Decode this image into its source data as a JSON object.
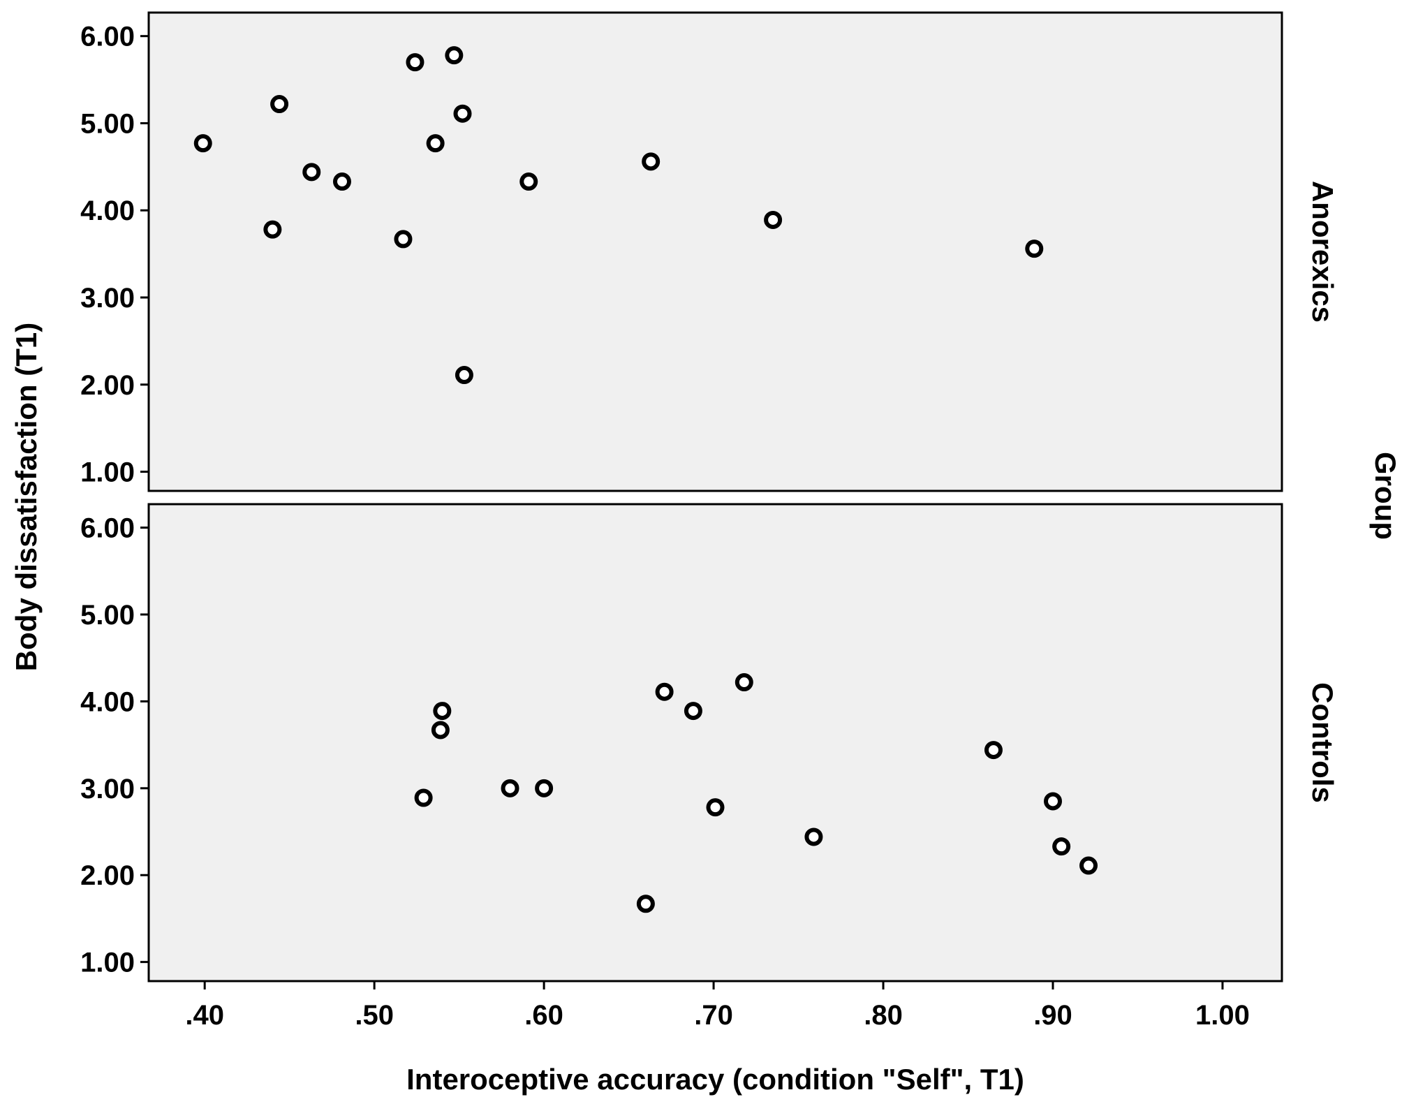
{
  "chart_data": {
    "type": "scatter",
    "xlabel": "Interoceptive accuracy (condition \"Self\", T1)",
    "ylabel": "Body dissatisfaction (T1)",
    "facet_label": "Group",
    "xlim": [
      0.367,
      1.035
    ],
    "ylim": [
      0.78,
      6.27
    ],
    "x_ticks": [
      ".40",
      ".50",
      ".60",
      ".70",
      ".80",
      ".90",
      "1.00"
    ],
    "x_tick_values": [
      0.4,
      0.5,
      0.6,
      0.7,
      0.8,
      0.9,
      1.0
    ],
    "y_ticks": [
      "1.00",
      "2.00",
      "3.00",
      "4.00",
      "5.00",
      "6.00"
    ],
    "y_tick_values": [
      1,
      2,
      3,
      4,
      5,
      6
    ],
    "grid": false,
    "panel_background": "#f0f0f0",
    "marker_color": "#000000",
    "panels": [
      {
        "name": "Anorexics",
        "points": [
          {
            "x": 0.399,
            "y": 4.77
          },
          {
            "x": 0.444,
            "y": 5.22
          },
          {
            "x": 0.44,
            "y": 3.78
          },
          {
            "x": 0.463,
            "y": 4.44
          },
          {
            "x": 0.481,
            "y": 4.33
          },
          {
            "x": 0.517,
            "y": 3.67
          },
          {
            "x": 0.524,
            "y": 5.7
          },
          {
            "x": 0.536,
            "y": 4.77
          },
          {
            "x": 0.547,
            "y": 5.78
          },
          {
            "x": 0.552,
            "y": 5.11
          },
          {
            "x": 0.553,
            "y": 2.11
          },
          {
            "x": 0.591,
            "y": 4.33
          },
          {
            "x": 0.663,
            "y": 4.56
          },
          {
            "x": 0.735,
            "y": 3.89
          },
          {
            "x": 0.889,
            "y": 3.56
          }
        ]
      },
      {
        "name": "Controls",
        "points": [
          {
            "x": 0.529,
            "y": 2.89
          },
          {
            "x": 0.54,
            "y": 3.89
          },
          {
            "x": 0.539,
            "y": 3.67
          },
          {
            "x": 0.58,
            "y": 3.0
          },
          {
            "x": 0.6,
            "y": 3.0
          },
          {
            "x": 0.66,
            "y": 1.67
          },
          {
            "x": 0.671,
            "y": 4.11
          },
          {
            "x": 0.688,
            "y": 3.89
          },
          {
            "x": 0.701,
            "y": 2.78
          },
          {
            "x": 0.718,
            "y": 4.22
          },
          {
            "x": 0.759,
            "y": 2.44
          },
          {
            "x": 0.865,
            "y": 3.44
          },
          {
            "x": 0.9,
            "y": 2.85
          },
          {
            "x": 0.905,
            "y": 2.33
          },
          {
            "x": 0.921,
            "y": 2.11
          }
        ]
      }
    ]
  }
}
